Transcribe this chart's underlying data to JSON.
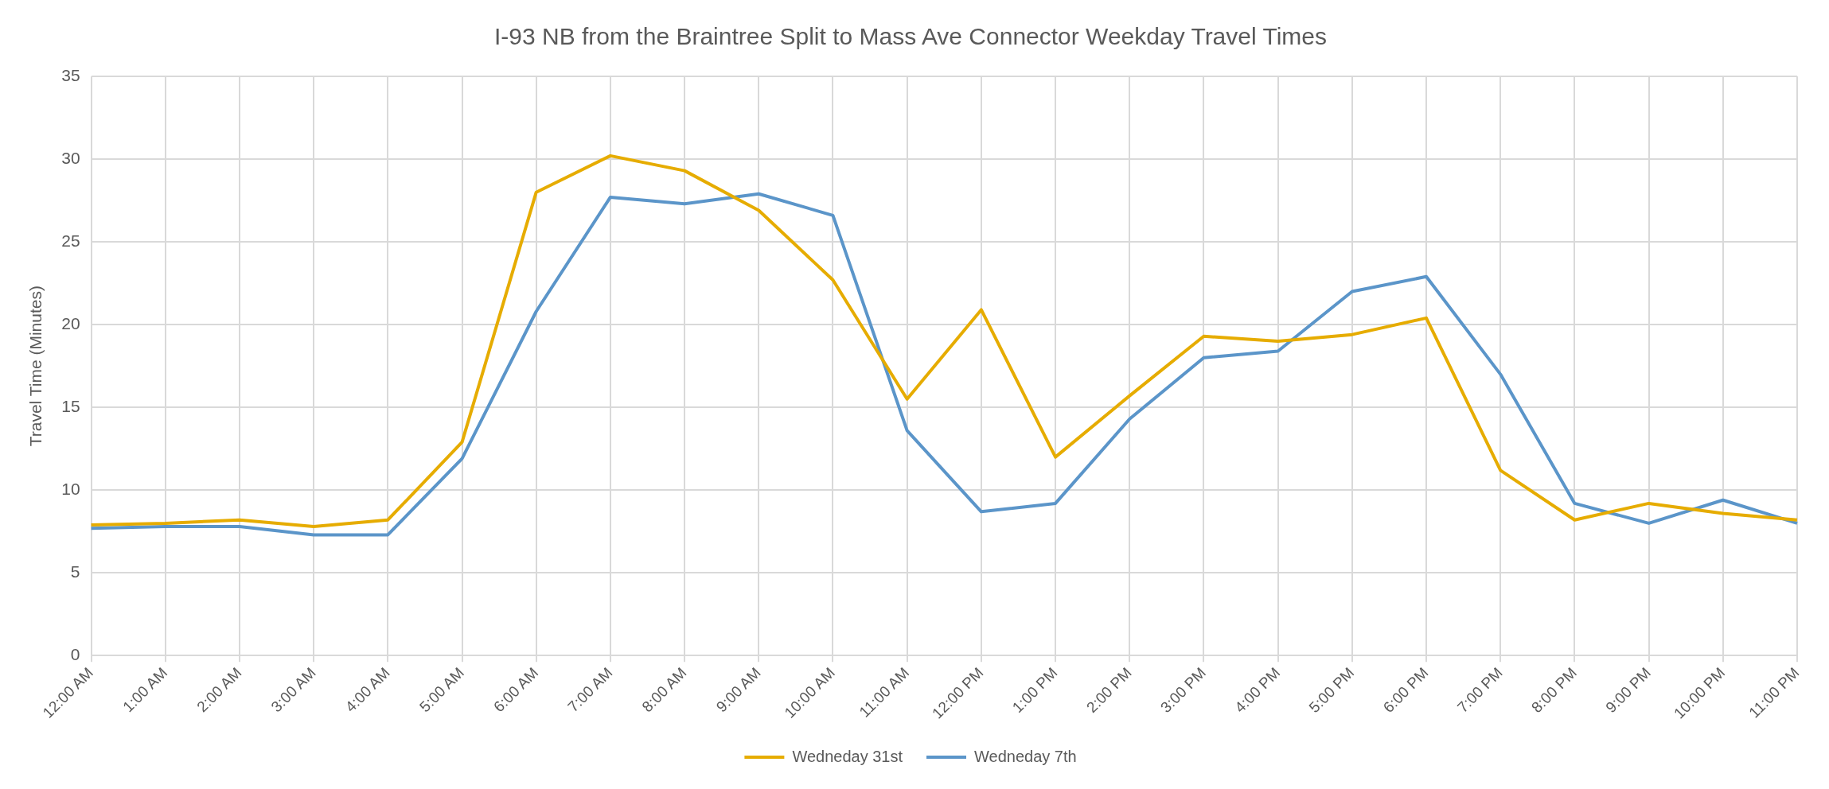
{
  "chart_data": {
    "type": "line",
    "title": "I-93 NB from the Braintree Split to Mass Ave Connector Weekday Travel Times",
    "ylabel": "Travel Time (Minutes)",
    "categories": [
      "12:00 AM",
      "1:00 AM",
      "2:00 AM",
      "3:00 AM",
      "4:00 AM",
      "5:00 AM",
      "6:00 AM",
      "7:00 AM",
      "8:00 AM",
      "9:00 AM",
      "10:00 AM",
      "11:00 AM",
      "12:00 PM",
      "1:00 PM",
      "2:00 PM",
      "3:00 PM",
      "4:00 PM",
      "5:00 PM",
      "6:00 PM",
      "7:00 PM",
      "8:00 PM",
      "9:00 PM",
      "10:00 PM",
      "11:00 PM"
    ],
    "series": [
      {
        "name": "Wedneday 31st",
        "color": "#e6ac00",
        "values": [
          7.9,
          8.0,
          8.2,
          7.8,
          8.2,
          12.9,
          28.0,
          30.2,
          29.3,
          26.9,
          22.7,
          15.5,
          20.9,
          12.0,
          15.7,
          19.3,
          19.0,
          19.4,
          20.4,
          11.2,
          8.2,
          9.2,
          8.6,
          8.2
        ]
      },
      {
        "name": "Wedneday 7th",
        "color": "#5b95c9",
        "values": [
          7.7,
          7.8,
          7.8,
          7.3,
          7.3,
          11.9,
          20.8,
          27.7,
          27.3,
          27.9,
          26.6,
          13.6,
          8.7,
          9.2,
          14.3,
          18.0,
          18.4,
          22.0,
          22.9,
          17.0,
          9.2,
          8.0,
          9.4,
          8.0
        ]
      }
    ],
    "ylim": [
      0,
      35
    ],
    "yticks": [
      0,
      5,
      10,
      15,
      20,
      25,
      30,
      35
    ],
    "grid": true,
    "legend": "bottom",
    "marker": "none",
    "line_style": "solid"
  }
}
